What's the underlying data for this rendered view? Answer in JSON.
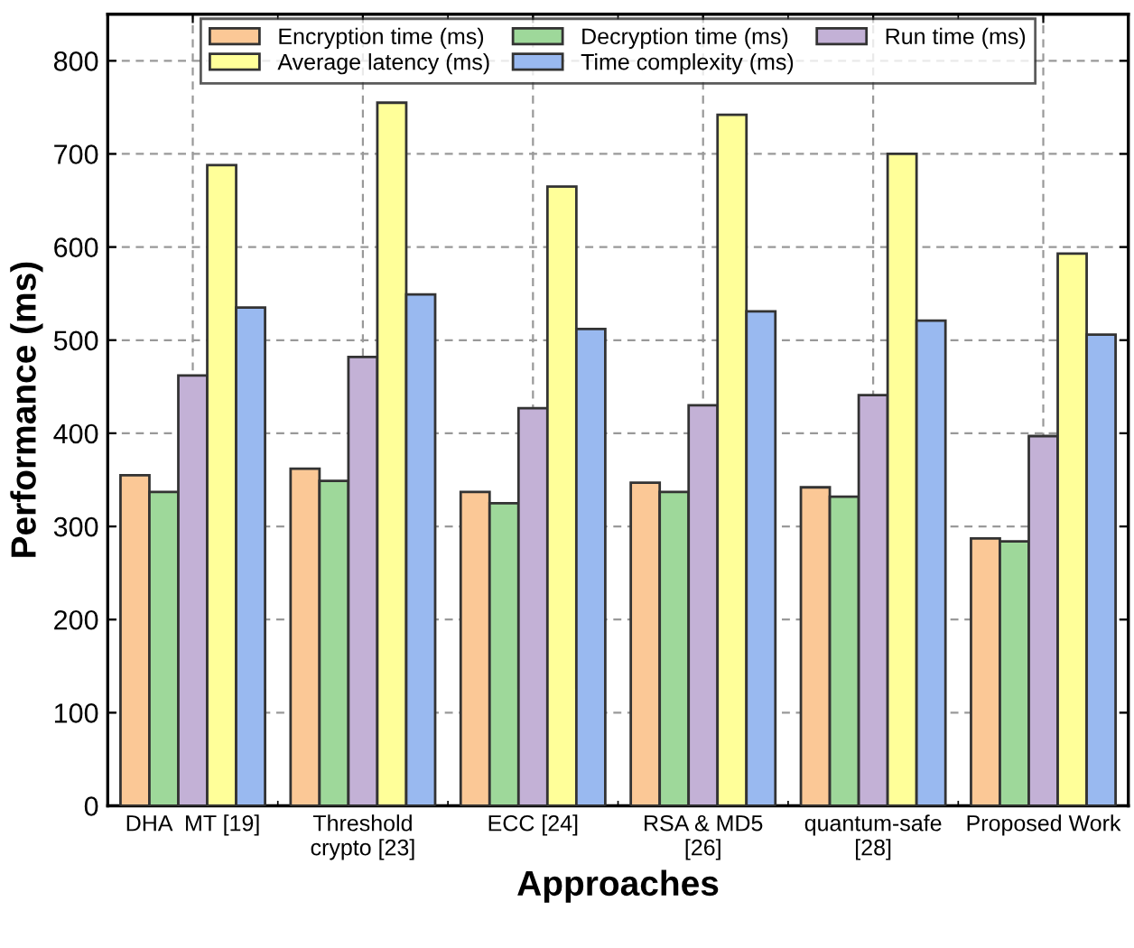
{
  "chart_data": {
    "type": "bar",
    "xlabel": "Approaches",
    "ylabel": "Performance (ms)",
    "categories": [
      "DHA  MT [19]",
      "Threshold\ncrypto [23]",
      "ECC [24]",
      "RSA & MD5\n[26]",
      "quantum-safe\n[28]",
      "Proposed Work"
    ],
    "series": [
      {
        "name": "Encryption time (ms)",
        "color": "#fbc896",
        "values": [
          355,
          362,
          337,
          347,
          342,
          287
        ]
      },
      {
        "name": "Decryption time (ms)",
        "color": "#9ed89a",
        "values": [
          337,
          349,
          325,
          337,
          332,
          284
        ]
      },
      {
        "name": "Run time (ms)",
        "color": "#c3b1d6",
        "values": [
          462,
          482,
          427,
          430,
          441,
          397
        ]
      },
      {
        "name": "Average latency (ms)",
        "color": "#ffff99",
        "values": [
          688,
          755,
          665,
          742,
          700,
          593
        ]
      },
      {
        "name": "Time complexity (ms)",
        "color": "#99b9f0",
        "values": [
          535,
          549,
          512,
          531,
          521,
          506
        ]
      }
    ],
    "ylim": [
      0,
      850
    ],
    "yticks": [
      0,
      100,
      200,
      300,
      400,
      500,
      600,
      700,
      800
    ],
    "grid": true,
    "legend": "top"
  }
}
